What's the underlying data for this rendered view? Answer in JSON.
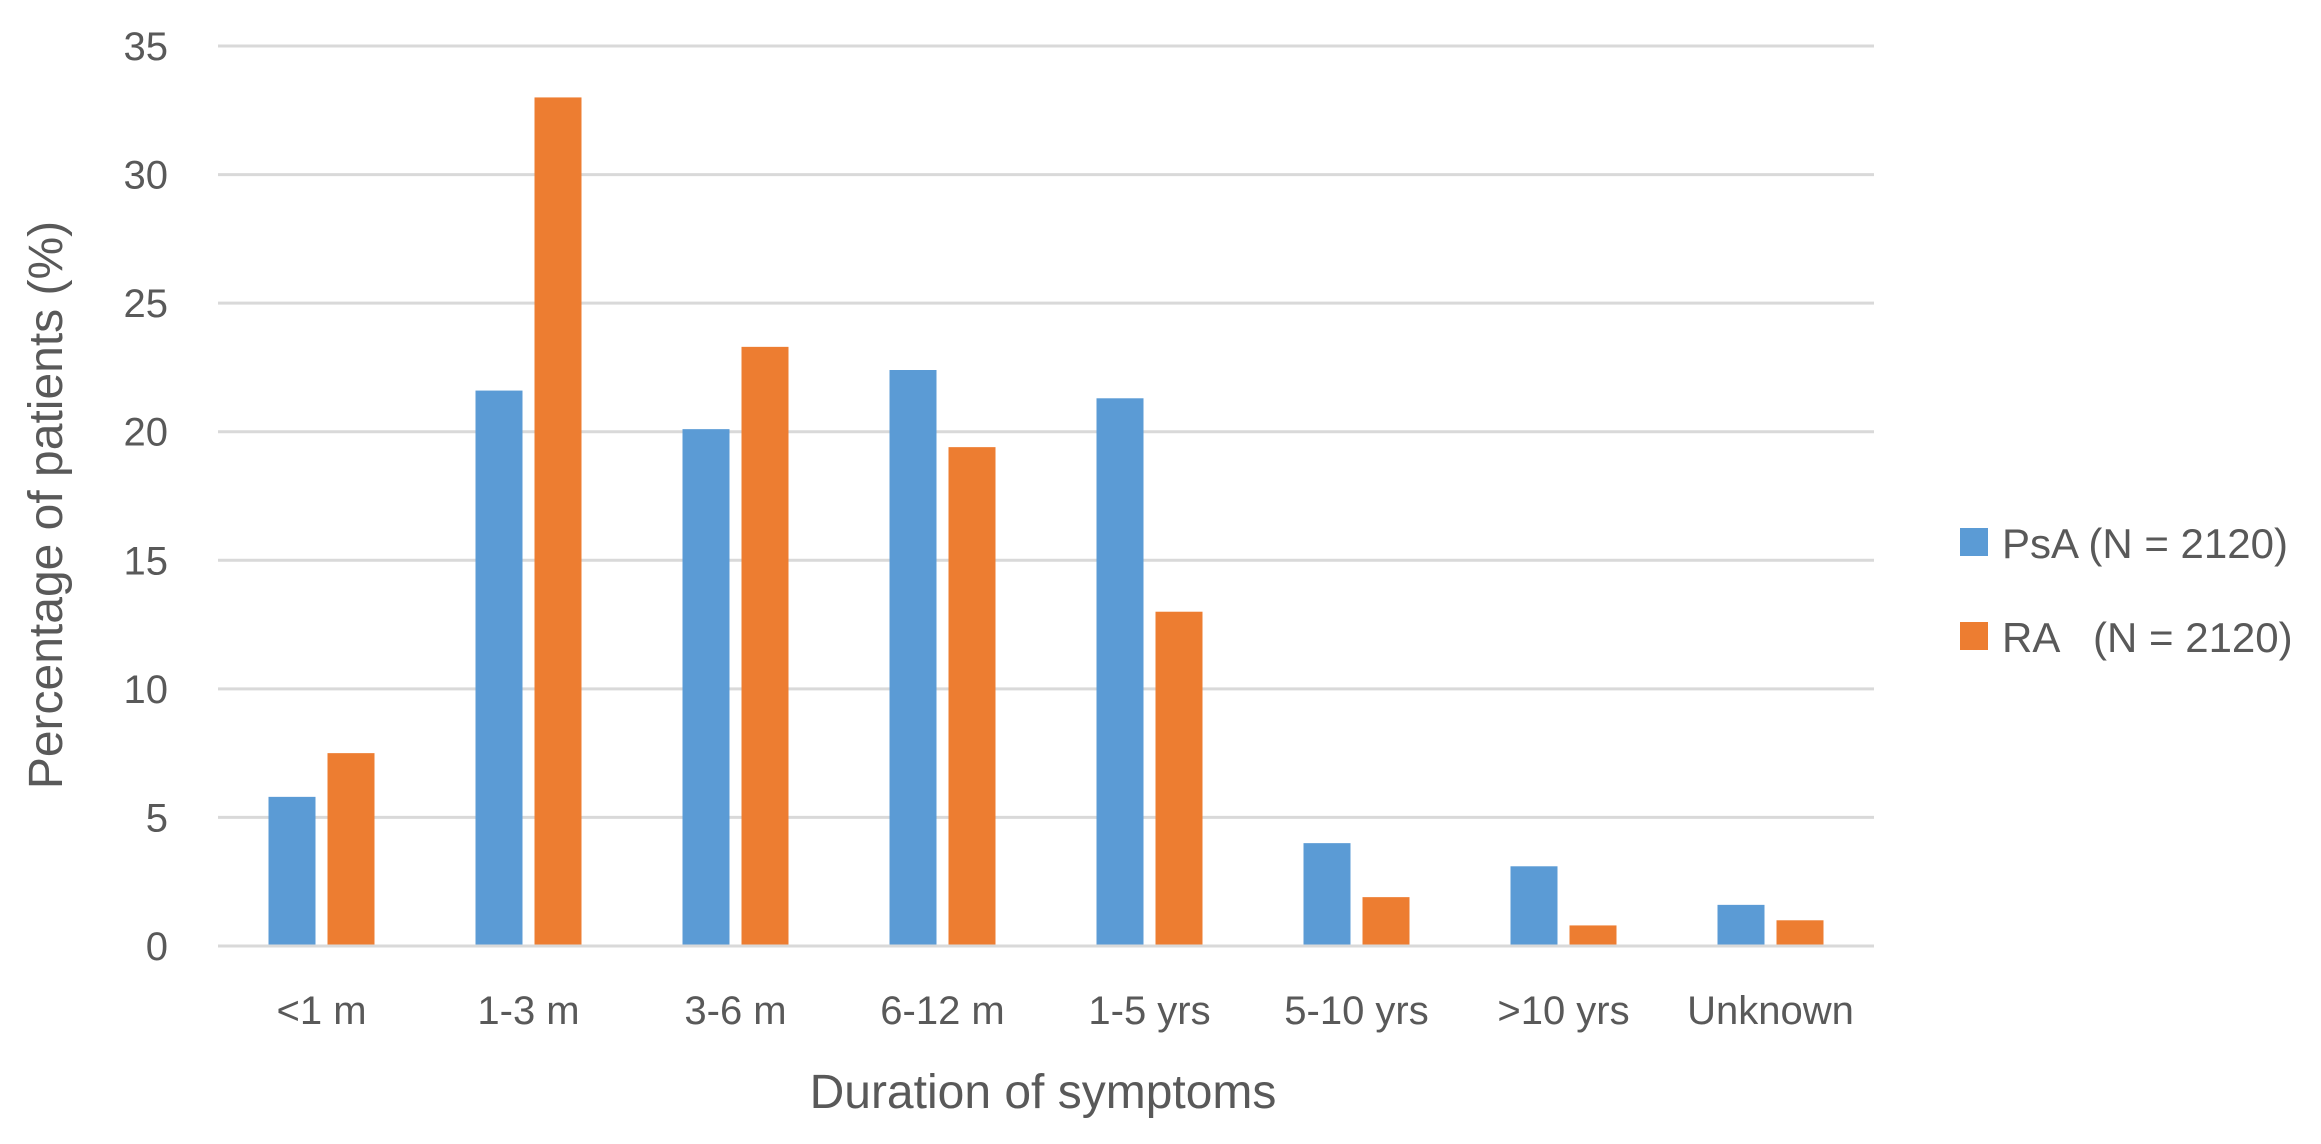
{
  "chart_data": {
    "type": "bar",
    "title": "",
    "xlabel": "Duration of symptoms",
    "ylabel": "Percentage of patients (%)",
    "ylim": [
      0,
      35
    ],
    "yticks": [
      0,
      5,
      10,
      15,
      20,
      25,
      30,
      35
    ],
    "grid": true,
    "legend_position": "right",
    "categories": [
      "<1 m",
      "1-3 m",
      "3-6 m",
      "6-12 m",
      "1-5 yrs",
      "5-10 yrs",
      ">10 yrs",
      "Unknown"
    ],
    "series": [
      {
        "name": "PsA (N = 2120)",
        "color": "#5B9BD5",
        "values": [
          5.8,
          21.6,
          20.1,
          22.4,
          21.3,
          4.0,
          3.1,
          1.6
        ]
      },
      {
        "name": "RA   (N = 2120)",
        "color": "#ED7D31",
        "values": [
          7.5,
          33.0,
          23.3,
          19.4,
          13.0,
          1.9,
          0.8,
          1.0
        ]
      }
    ]
  }
}
